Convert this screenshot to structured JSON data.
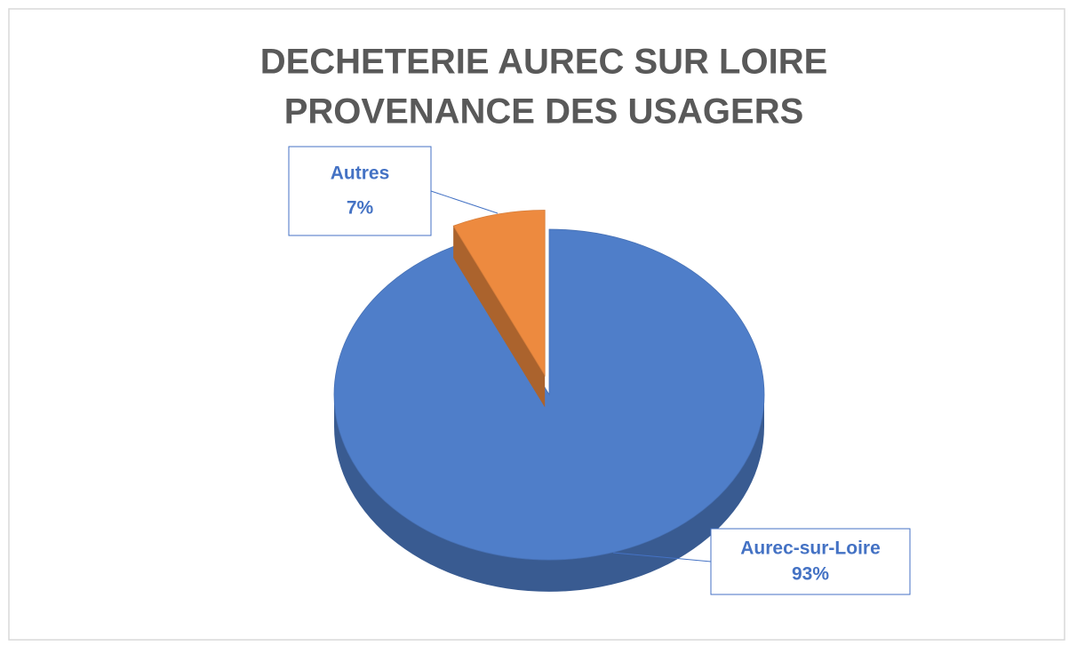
{
  "chart_data": {
    "type": "pie",
    "title": [
      "DECHETERIE AUREC SUR LOIRE",
      "PROVENANCE DES USAGERS"
    ],
    "categories": [
      "Aurec-sur-Loire",
      "Autres"
    ],
    "values": [
      93,
      7
    ],
    "value_labels": [
      "93%",
      "7%"
    ],
    "colors": [
      "#4f7ec9",
      "#ed8a3f"
    ],
    "explode": [
      false,
      true
    ]
  }
}
